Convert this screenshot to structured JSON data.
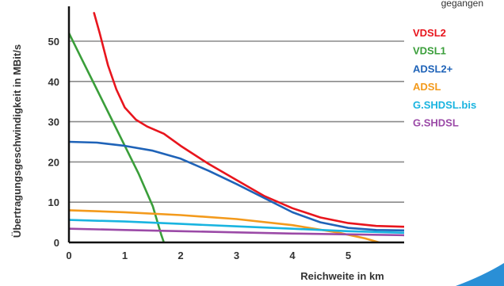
{
  "corner_text": "gegangen",
  "chart_data": {
    "type": "line",
    "xlabel": "Reichweite in km",
    "ylabel": "Übertragungsgeschwindigkeit in MBit/s",
    "xlim": [
      0,
      6
    ],
    "ylim": [
      0,
      57
    ],
    "x_ticks": [
      "0",
      "1",
      "2",
      "3",
      "4",
      "5"
    ],
    "y_ticks": [
      "0",
      "10",
      "20",
      "30",
      "40",
      "50"
    ],
    "grid": "horizontal",
    "legend_position": "right",
    "series": [
      {
        "name": "VDSL2",
        "color": "#e8151d",
        "points": [
          [
            0.45,
            57
          ],
          [
            0.55,
            52
          ],
          [
            0.7,
            44
          ],
          [
            0.85,
            38
          ],
          [
            1.0,
            33.5
          ],
          [
            1.2,
            30.5
          ],
          [
            1.4,
            28.8
          ],
          [
            1.7,
            27
          ],
          [
            2.0,
            24
          ],
          [
            2.5,
            19.5
          ],
          [
            3.0,
            15.5
          ],
          [
            3.5,
            11.5
          ],
          [
            4.0,
            8.5
          ],
          [
            4.5,
            6.2
          ],
          [
            5.0,
            4.8
          ],
          [
            5.5,
            4.1
          ],
          [
            6.0,
            3.9
          ]
        ]
      },
      {
        "name": "VDSL1",
        "color": "#3a9e3a",
        "points": [
          [
            0,
            52
          ],
          [
            0.25,
            45
          ],
          [
            0.5,
            38
          ],
          [
            0.75,
            31
          ],
          [
            1.0,
            24
          ],
          [
            1.25,
            17
          ],
          [
            1.5,
            9
          ],
          [
            1.65,
            2
          ],
          [
            1.7,
            0
          ]
        ]
      },
      {
        "name": "ADSL2+",
        "color": "#1f63b8",
        "points": [
          [
            0,
            25
          ],
          [
            0.5,
            24.8
          ],
          [
            1.0,
            24
          ],
          [
            1.5,
            22.8
          ],
          [
            2.0,
            20.8
          ],
          [
            2.5,
            17.8
          ],
          [
            3.0,
            14.5
          ],
          [
            3.5,
            11
          ],
          [
            4.0,
            7.5
          ],
          [
            4.5,
            5
          ],
          [
            5.0,
            3.6
          ],
          [
            5.5,
            3.1
          ],
          [
            6.0,
            3.0
          ]
        ]
      },
      {
        "name": "ADSL",
        "color": "#f39a1c",
        "points": [
          [
            0,
            8
          ],
          [
            1.0,
            7.5
          ],
          [
            2.0,
            6.8
          ],
          [
            3.0,
            5.8
          ],
          [
            4.0,
            4.3
          ],
          [
            4.8,
            2.5
          ],
          [
            5.3,
            1.0
          ],
          [
            5.55,
            0
          ]
        ]
      },
      {
        "name": "G.SHDSL.bis",
        "color": "#19b4e0",
        "points": [
          [
            0,
            5.6
          ],
          [
            1.0,
            5.2
          ],
          [
            2.0,
            4.6
          ],
          [
            3.0,
            4.0
          ],
          [
            4.0,
            3.4
          ],
          [
            5.0,
            2.8
          ],
          [
            6.0,
            2.4
          ]
        ]
      },
      {
        "name": "G.SHDSL",
        "color": "#9b4aa7",
        "points": [
          [
            0,
            3.4
          ],
          [
            1.0,
            3.1
          ],
          [
            2.0,
            2.8
          ],
          [
            3.0,
            2.5
          ],
          [
            4.0,
            2.2
          ],
          [
            5.0,
            2.0
          ],
          [
            6.0,
            1.8
          ]
        ]
      }
    ]
  }
}
